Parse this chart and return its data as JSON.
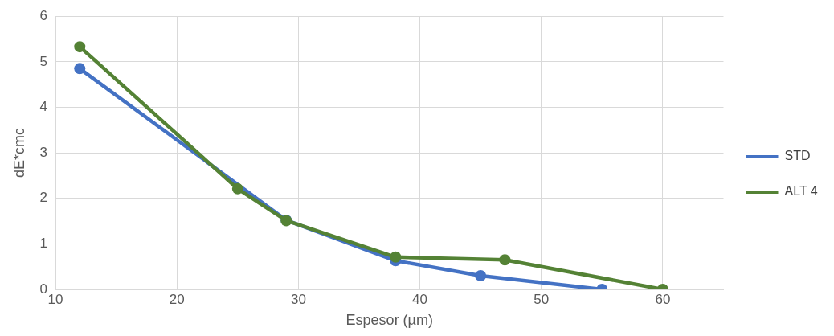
{
  "chart_data": {
    "type": "line",
    "xlabel": "Espesor (µm)",
    "ylabel": "dE*cmc",
    "xlim": [
      10,
      65
    ],
    "xticks": [
      10,
      20,
      30,
      40,
      50,
      60
    ],
    "ylim": [
      0,
      6
    ],
    "yticks": [
      0,
      1,
      2,
      3,
      4,
      5,
      6
    ],
    "grid": true,
    "legend": "right",
    "marker": "circle",
    "line_style": "solid",
    "series": [
      {
        "name": "STD",
        "color": "#4472c4",
        "x": [
          12,
          29,
          38,
          45,
          55
        ],
        "values": [
          4.85,
          1.52,
          0.63,
          0.3,
          0
        ]
      },
      {
        "name": "ALT 4",
        "color": "#548235",
        "x": [
          12,
          25,
          29,
          38,
          47,
          60
        ],
        "values": [
          5.33,
          2.21,
          1.51,
          0.71,
          0.65,
          0
        ]
      }
    ]
  }
}
